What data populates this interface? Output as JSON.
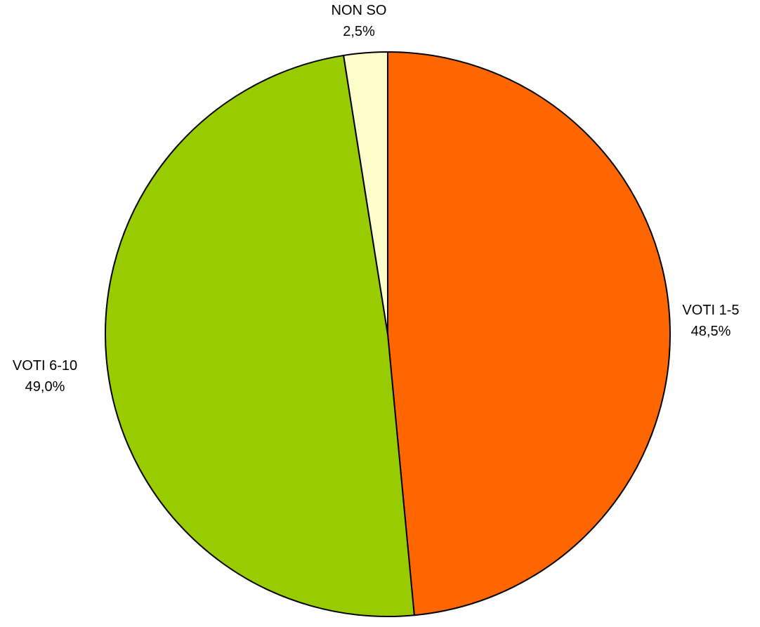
{
  "chart_data": {
    "type": "pie",
    "title": "",
    "start_angle_deg": 0,
    "direction": "clockwise",
    "slices": [
      {
        "label": "VOTI 1-5",
        "value": 48.5,
        "value_text": "48,5%",
        "color": "#FF6600"
      },
      {
        "label": "VOTI 6-10",
        "value": 49.0,
        "value_text": "49,0%",
        "color": "#99CC00"
      },
      {
        "label": "NON SO",
        "value": 2.5,
        "value_text": "2,5%",
        "color": "#FFFFCC"
      }
    ]
  }
}
